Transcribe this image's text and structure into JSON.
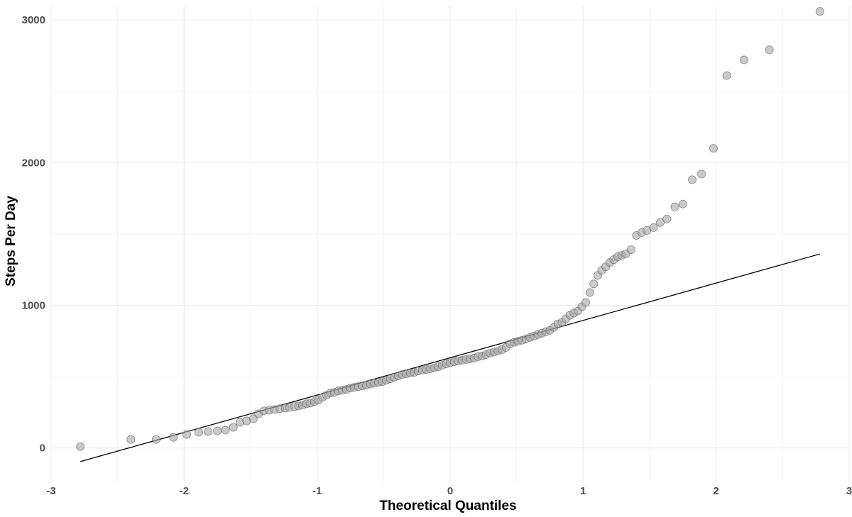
{
  "chart_data": {
    "type": "scatter",
    "title": "",
    "xlabel": "Theoretical Quantiles",
    "ylabel": "Steps Per Day",
    "xlim": [
      -3,
      3
    ],
    "ylim": [
      -240,
      3100
    ],
    "x_ticks": [
      -3,
      -2,
      -1,
      0,
      1,
      2,
      3
    ],
    "x_tick_labels": [
      "-3",
      "-2",
      "-1",
      "0",
      "1",
      "2",
      "3"
    ],
    "y_ticks": [
      0,
      1000,
      2000,
      3000
    ],
    "y_tick_labels": [
      "0",
      "1000",
      "2000",
      "3000"
    ],
    "grid": true,
    "legend": "none",
    "reference_line": {
      "x": [
        -2.78,
        2.78
      ],
      "y": [
        -95,
        1360
      ]
    },
    "colors": {
      "point_fill": "#a6a6a6",
      "point_stroke": "#555555",
      "line": "#000000",
      "grid": "#ebebeb"
    },
    "series": [
      {
        "points": [
          [
            -2.78,
            10
          ],
          [
            -2.4,
            60
          ],
          [
            -2.21,
            60
          ],
          [
            -2.08,
            75
          ],
          [
            -1.98,
            95
          ],
          [
            -1.89,
            110
          ],
          [
            -1.82,
            115
          ],
          [
            -1.75,
            120
          ],
          [
            -1.69,
            125
          ],
          [
            -1.63,
            145
          ],
          [
            -1.58,
            180
          ],
          [
            -1.53,
            190
          ],
          [
            -1.48,
            205
          ],
          [
            -1.44,
            240
          ],
          [
            -1.4,
            260
          ],
          [
            -1.36,
            265
          ],
          [
            -1.32,
            270
          ],
          [
            -1.28,
            275
          ],
          [
            -1.24,
            280
          ],
          [
            -1.21,
            285
          ],
          [
            -1.17,
            290
          ],
          [
            -1.14,
            295
          ],
          [
            -1.11,
            300
          ],
          [
            -1.08,
            310
          ],
          [
            -1.05,
            315
          ],
          [
            -1.02,
            325
          ],
          [
            -0.99,
            335
          ],
          [
            -0.96,
            355
          ],
          [
            -0.93,
            370
          ],
          [
            -0.9,
            385
          ],
          [
            -0.87,
            390
          ],
          [
            -0.84,
            400
          ],
          [
            -0.81,
            405
          ],
          [
            -0.78,
            410
          ],
          [
            -0.75,
            420
          ],
          [
            -0.72,
            425
          ],
          [
            -0.69,
            430
          ],
          [
            -0.66,
            435
          ],
          [
            -0.63,
            440
          ],
          [
            -0.6,
            448
          ],
          [
            -0.57,
            455
          ],
          [
            -0.54,
            460
          ],
          [
            -0.51,
            465
          ],
          [
            -0.48,
            475
          ],
          [
            -0.45,
            485
          ],
          [
            -0.42,
            495
          ],
          [
            -0.39,
            505
          ],
          [
            -0.36,
            515
          ],
          [
            -0.33,
            520
          ],
          [
            -0.3,
            525
          ],
          [
            -0.27,
            530
          ],
          [
            -0.24,
            540
          ],
          [
            -0.21,
            545
          ],
          [
            -0.18,
            550
          ],
          [
            -0.15,
            555
          ],
          [
            -0.12,
            562
          ],
          [
            -0.09,
            570
          ],
          [
            -0.06,
            580
          ],
          [
            -0.03,
            590
          ],
          [
            0.0,
            598
          ],
          [
            0.03,
            605
          ],
          [
            0.06,
            610
          ],
          [
            0.09,
            615
          ],
          [
            0.12,
            620
          ],
          [
            0.15,
            625
          ],
          [
            0.18,
            630
          ],
          [
            0.21,
            640
          ],
          [
            0.24,
            645
          ],
          [
            0.27,
            655
          ],
          [
            0.3,
            665
          ],
          [
            0.33,
            672
          ],
          [
            0.36,
            680
          ],
          [
            0.39,
            690
          ],
          [
            0.42,
            705
          ],
          [
            0.45,
            730
          ],
          [
            0.48,
            740
          ],
          [
            0.51,
            748
          ],
          [
            0.54,
            755
          ],
          [
            0.57,
            765
          ],
          [
            0.6,
            775
          ],
          [
            0.63,
            785
          ],
          [
            0.66,
            795
          ],
          [
            0.69,
            805
          ],
          [
            0.72,
            815
          ],
          [
            0.75,
            825
          ],
          [
            0.78,
            845
          ],
          [
            0.81,
            870
          ],
          [
            0.84,
            880
          ],
          [
            0.87,
            905
          ],
          [
            0.9,
            930
          ],
          [
            0.93,
            945
          ],
          [
            0.96,
            960
          ],
          [
            0.99,
            990
          ],
          [
            1.02,
            1020
          ],
          [
            1.05,
            1090
          ],
          [
            1.08,
            1150
          ],
          [
            1.11,
            1210
          ],
          [
            1.14,
            1245
          ],
          [
            1.17,
            1270
          ],
          [
            1.2,
            1300
          ],
          [
            1.23,
            1320
          ],
          [
            1.26,
            1340
          ],
          [
            1.29,
            1350
          ],
          [
            1.32,
            1360
          ],
          [
            1.36,
            1390
          ],
          [
            1.4,
            1490
          ],
          [
            1.44,
            1510
          ],
          [
            1.48,
            1525
          ],
          [
            1.53,
            1545
          ],
          [
            1.58,
            1580
          ],
          [
            1.63,
            1605
          ],
          [
            1.69,
            1690
          ],
          [
            1.75,
            1710
          ],
          [
            1.82,
            1880
          ],
          [
            1.89,
            1920
          ],
          [
            1.98,
            2100
          ],
          [
            2.08,
            2610
          ],
          [
            2.21,
            2720
          ],
          [
            2.4,
            2790
          ],
          [
            2.78,
            3060
          ]
        ]
      }
    ]
  }
}
